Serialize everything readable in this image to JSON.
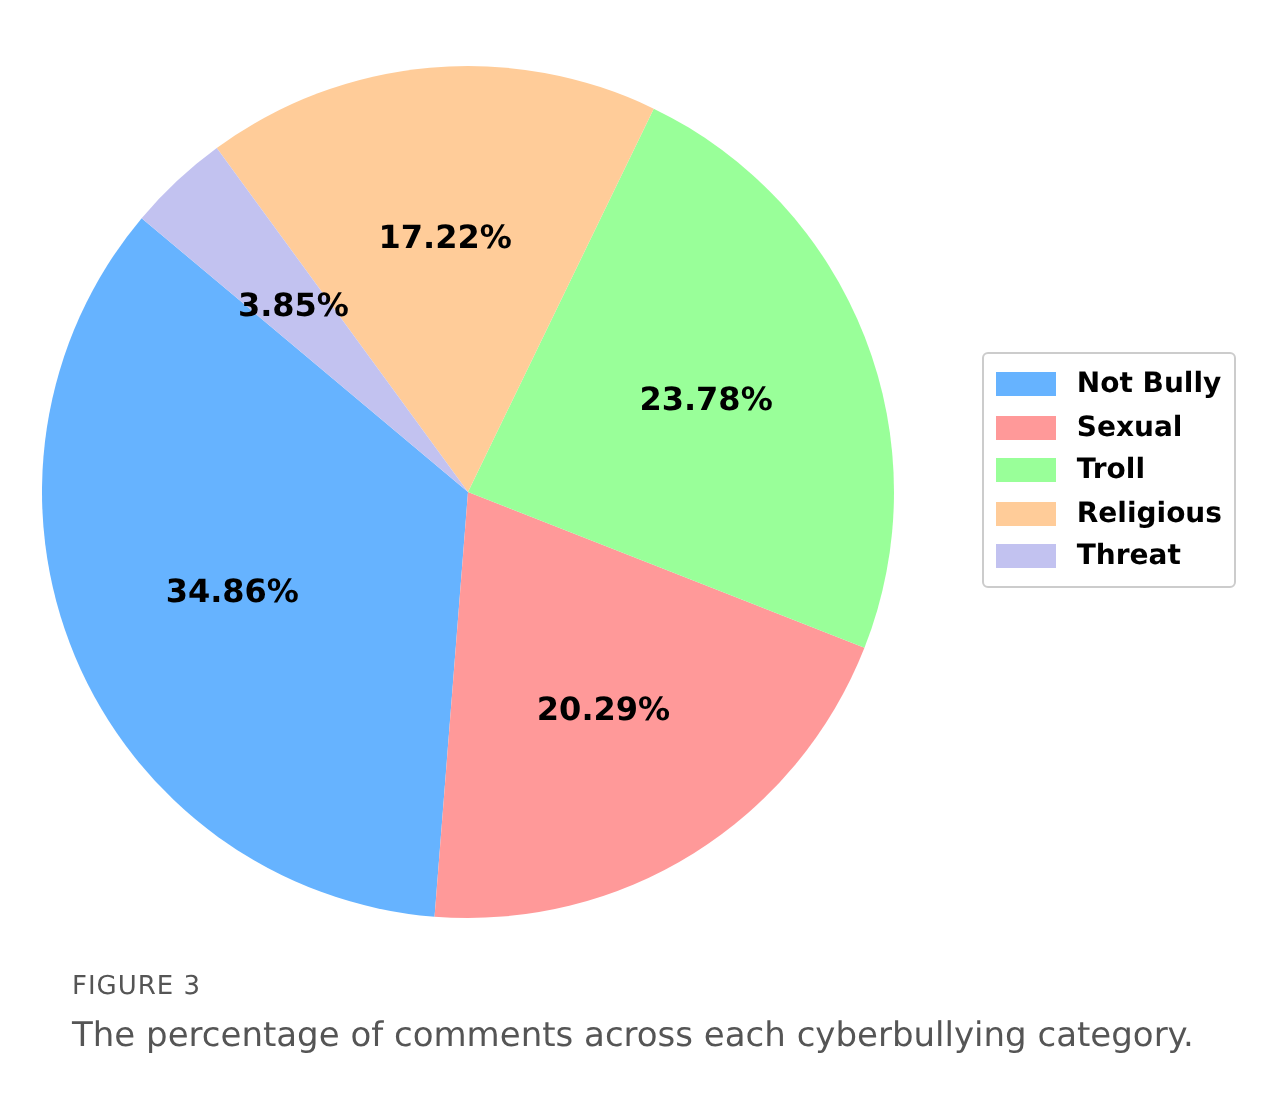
{
  "chart_data": {
    "type": "pie",
    "categories": [
      "Not Bully",
      "Sexual",
      "Troll",
      "Religious",
      "Threat"
    ],
    "values": [
      34.86,
      20.29,
      23.78,
      17.22,
      3.85
    ],
    "value_labels": [
      "34.86%",
      "20.29%",
      "23.78%",
      "17.22%",
      "3.85%"
    ],
    "colors": [
      "#66b3ff",
      "#ff9999",
      "#99ff99",
      "#ffcc99",
      "#c2c2f0"
    ],
    "legend": "right",
    "annotations": [
      "FIGURE 3",
      "The percentage of comments across each cyberbullying category."
    ]
  }
}
